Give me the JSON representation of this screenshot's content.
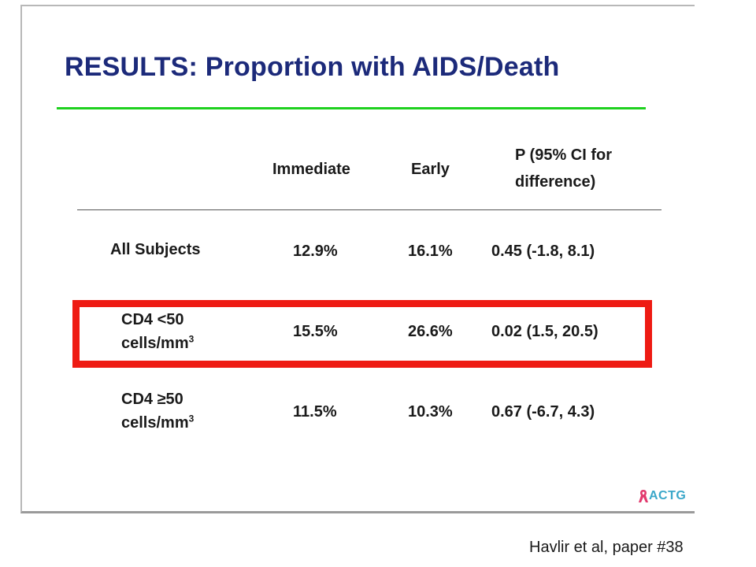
{
  "slide": {
    "title": "RESULTS: Proportion with AIDS/Death",
    "accent_color": "#1fd11f",
    "title_color": "#1c2a7a",
    "highlight_color": "#ee1b13"
  },
  "table": {
    "headers": {
      "immediate": "Immediate",
      "early": "Early",
      "p_line1": "P (95% CI for",
      "p_line2": "difference)"
    },
    "rows": [
      {
        "label_line1": "All Subjects",
        "immediate": "12.9%",
        "early": "16.1%",
        "p": "0.45 (-1.8, 8.1)"
      },
      {
        "label_line1": "CD4 <50",
        "label_line2": "cells/mm",
        "label_sup": "3",
        "immediate": "15.5%",
        "early": "26.6%",
        "p": "0.02 (1.5, 20.5)",
        "highlighted": true
      },
      {
        "label_line1": "CD4 ≥50",
        "label_line2": "cells/mm",
        "label_sup": "3",
        "immediate": "11.5%",
        "early": "10.3%",
        "p": "0.67 (-6.7, 4.3)"
      }
    ]
  },
  "logo": {
    "text": "ACTG",
    "icon": "ribbon-icon"
  },
  "citation": "Havlir et al, paper #38"
}
